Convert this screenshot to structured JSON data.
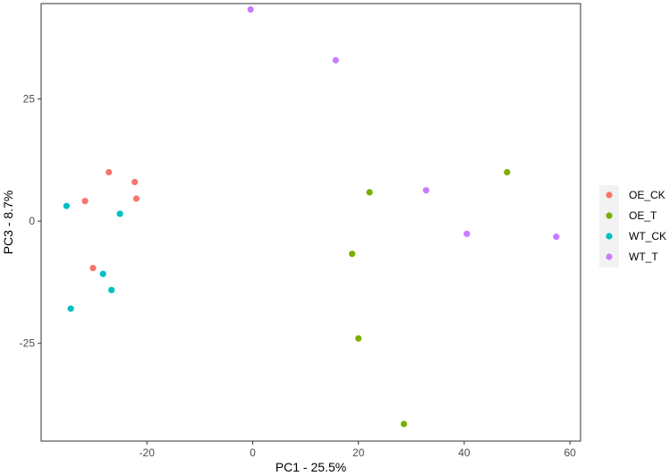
{
  "chart_data": {
    "type": "scatter",
    "title": "",
    "xlabel": "PC1 - 25.5%",
    "ylabel": "PC3 - 8.7%",
    "xlim": [
      -40,
      62
    ],
    "ylim": [
      -45,
      44.5
    ],
    "x_ticks": [
      -20,
      0,
      20,
      40,
      60
    ],
    "x_tick_labels": [
      "-20",
      "0",
      "20",
      "40",
      "60"
    ],
    "y_ticks": [
      -25,
      0,
      25
    ],
    "y_tick_labels": [
      "-25",
      "0",
      "25"
    ],
    "grid": false,
    "legend_position": "right",
    "series": [
      {
        "name": "OE_CK",
        "color": "#F8766D",
        "points": [
          {
            "x": -27.2,
            "y": 10.0
          },
          {
            "x": -22.3,
            "y": 8.0
          },
          {
            "x": -22.0,
            "y": 4.6
          },
          {
            "x": -31.7,
            "y": 4.1
          },
          {
            "x": -30.2,
            "y": -9.6
          }
        ]
      },
      {
        "name": "OE_T",
        "color": "#7CAE00",
        "points": [
          {
            "x": 48.1,
            "y": 10.0
          },
          {
            "x": 22.1,
            "y": 5.9
          },
          {
            "x": 18.8,
            "y": -6.7
          },
          {
            "x": 20.0,
            "y": -24.0
          },
          {
            "x": 28.6,
            "y": -41.5
          }
        ]
      },
      {
        "name": "WT_CK",
        "color": "#00BFC4",
        "points": [
          {
            "x": -35.2,
            "y": 3.1
          },
          {
            "x": -25.1,
            "y": 1.5
          },
          {
            "x": -28.3,
            "y": -10.8
          },
          {
            "x": -26.7,
            "y": -14.1
          },
          {
            "x": -34.4,
            "y": -17.9
          }
        ]
      },
      {
        "name": "WT_T",
        "color": "#C77CFF",
        "points": [
          {
            "x": -0.4,
            "y": 43.3
          },
          {
            "x": 15.7,
            "y": 32.9
          },
          {
            "x": 32.8,
            "y": 6.3
          },
          {
            "x": 40.5,
            "y": -2.6
          },
          {
            "x": 57.4,
            "y": -3.2
          }
        ]
      }
    ]
  }
}
